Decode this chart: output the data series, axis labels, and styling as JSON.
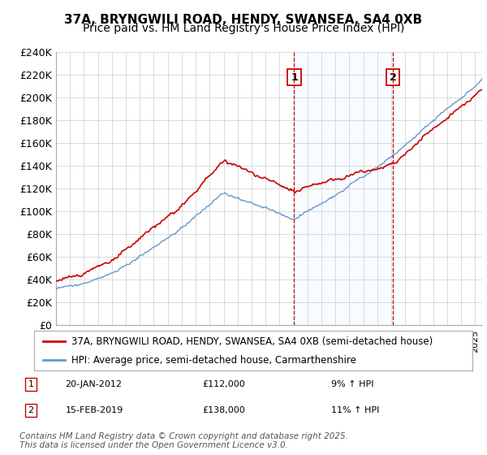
{
  "title_line1": "37A, BRYNGWILI ROAD, HENDY, SWANSEA, SA4 0XB",
  "title_line2": "Price paid vs. HM Land Registry's House Price Index (HPI)",
  "legend_label1": "37A, BRYNGWILI ROAD, HENDY, SWANSEA, SA4 0XB (semi-detached house)",
  "legend_label2": "HPI: Average price, semi-detached house, Carmarthenshire",
  "annotation1_label": "1",
  "annotation1_date": "20-JAN-2012",
  "annotation1_price": "£112,000",
  "annotation1_hpi": "9% ↑ HPI",
  "annotation2_label": "2",
  "annotation2_date": "15-FEB-2019",
  "annotation2_price": "£138,000",
  "annotation2_hpi": "11% ↑ HPI",
  "footnote": "Contains HM Land Registry data © Crown copyright and database right 2025.\nThis data is licensed under the Open Government Licence v3.0.",
  "sale1_x": 2012.05,
  "sale1_y": 112000,
  "sale2_x": 2019.12,
  "sale2_y": 138000,
  "vline1_x": 2012.05,
  "vline2_x": 2019.12,
  "xmin": 1995,
  "xmax": 2025.5,
  "ymin": 0,
  "ymax": 240000,
  "yticks": [
    0,
    20000,
    40000,
    60000,
    80000,
    100000,
    120000,
    140000,
    160000,
    180000,
    200000,
    220000,
    240000
  ],
  "ytick_labels": [
    "£0",
    "£20K",
    "£40K",
    "£60K",
    "£80K",
    "£100K",
    "£120K",
    "£140K",
    "£160K",
    "£180K",
    "£200K",
    "£220K",
    "£240K"
  ],
  "line1_color": "#cc0000",
  "line2_color": "#6699cc",
  "vline_color": "#cc0000",
  "shade_color": "#ddeeff",
  "background_color": "#ffffff",
  "grid_color": "#cccccc",
  "title_fontsize": 11,
  "subtitle_fontsize": 10,
  "tick_fontsize": 9,
  "legend_fontsize": 8.5,
  "annotation_fontsize": 8,
  "footnote_fontsize": 7.5
}
